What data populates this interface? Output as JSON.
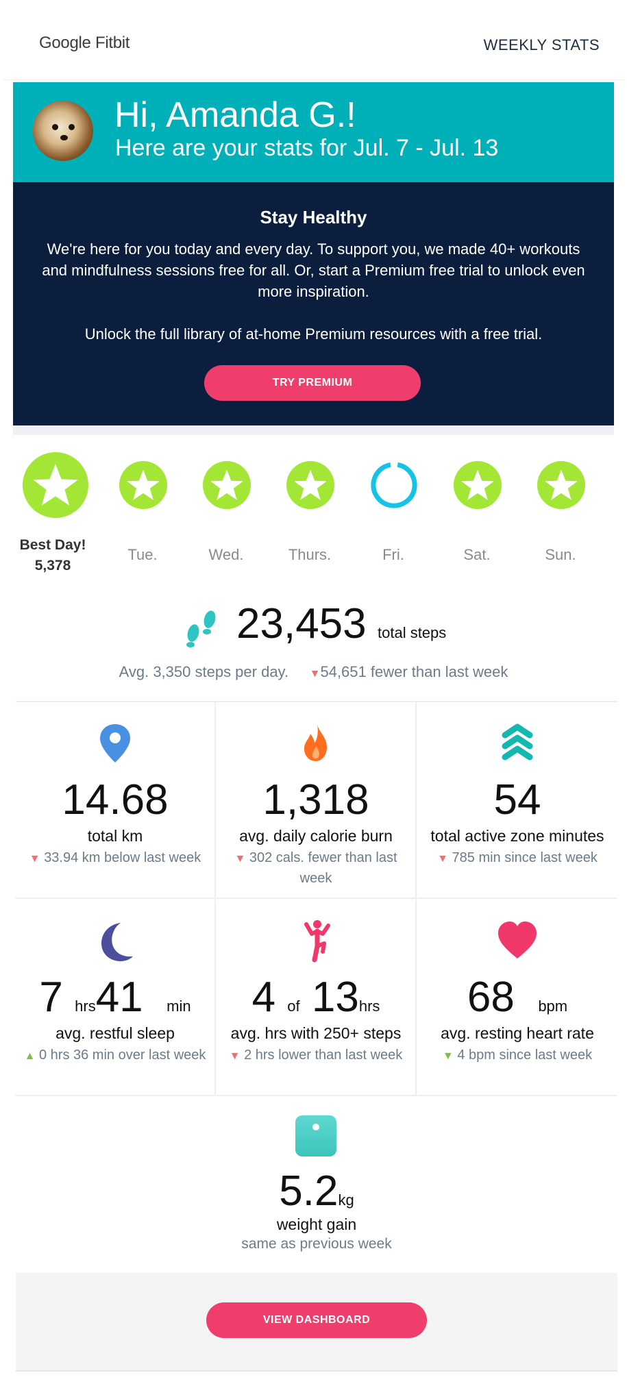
{
  "header": {
    "logo": "Google Fitbit",
    "link": "WEEKLY STATS"
  },
  "banner": {
    "greeting": "Hi, Amanda G.!",
    "subtitle": "Here are your stats for Jul. 7 - Jul. 13"
  },
  "promo": {
    "title": "Stay Healthy",
    "body": "We're here for you today and every day. To support you, we made 40+ workouts and mindfulness sessions free for all. Or, start a Premium free trial to unlock even more inspiration.",
    "body2": "Unlock the full library of at-home Premium resources with a free trial.",
    "button": "TRY PREMIUM"
  },
  "week": {
    "best_label": "Best Day!",
    "best_value": "5,378",
    "days": [
      "Tue.",
      "Wed.",
      "Thurs.",
      "Fri.",
      "Sat.",
      "Sun."
    ]
  },
  "steps": {
    "total": "23,453",
    "unit": "total steps",
    "avg": "Avg. 3,350 steps per day.",
    "arrow": "▼",
    "change": "54,651 fewer than last week"
  },
  "stats": [
    {
      "icon": "location-pin-icon",
      "value": "14.68",
      "label": "total km",
      "arrow": "▼",
      "change": "33.94 km below last week"
    },
    {
      "icon": "flame-icon",
      "value": "1,318",
      "label": "avg. daily calorie burn",
      "arrow": "▼",
      "change": "302 cals. fewer than last week"
    },
    {
      "icon": "active-zone-icon",
      "value": "54",
      "label": "total active zone minutes",
      "arrow": "▼",
      "change": "785 min since last week"
    },
    {
      "icon": "moon-icon",
      "value_a": "7",
      "unit_a": "hrs",
      "value_b": "41",
      "unit_b": "min",
      "label": "avg. restful sleep",
      "arrow": "▲",
      "change": "0 hrs 36 min over last week"
    },
    {
      "icon": "person-active-icon",
      "value_a": "4",
      "unit_a": "of",
      "value_b": "13",
      "unit_b": "hrs",
      "label": "avg. hrs with 250+ steps",
      "arrow": "▼",
      "change": "2 hrs lower than last week"
    },
    {
      "icon": "heart-icon",
      "value": "68",
      "unit": "bpm",
      "label": "avg. resting heart rate",
      "arrow": "▼",
      "change": "4 bpm since last week"
    }
  ],
  "weight": {
    "value": "5.2",
    "unit": "kg",
    "label": "weight gain",
    "change": "same as previous week"
  },
  "footer": {
    "button": "VIEW DASHBOARD"
  },
  "colors": {
    "teal": "#00b0b9",
    "navy": "#0b1e3d",
    "pink": "#f03e6c",
    "lime": "#a3e635",
    "ring": "#14c3e6"
  }
}
